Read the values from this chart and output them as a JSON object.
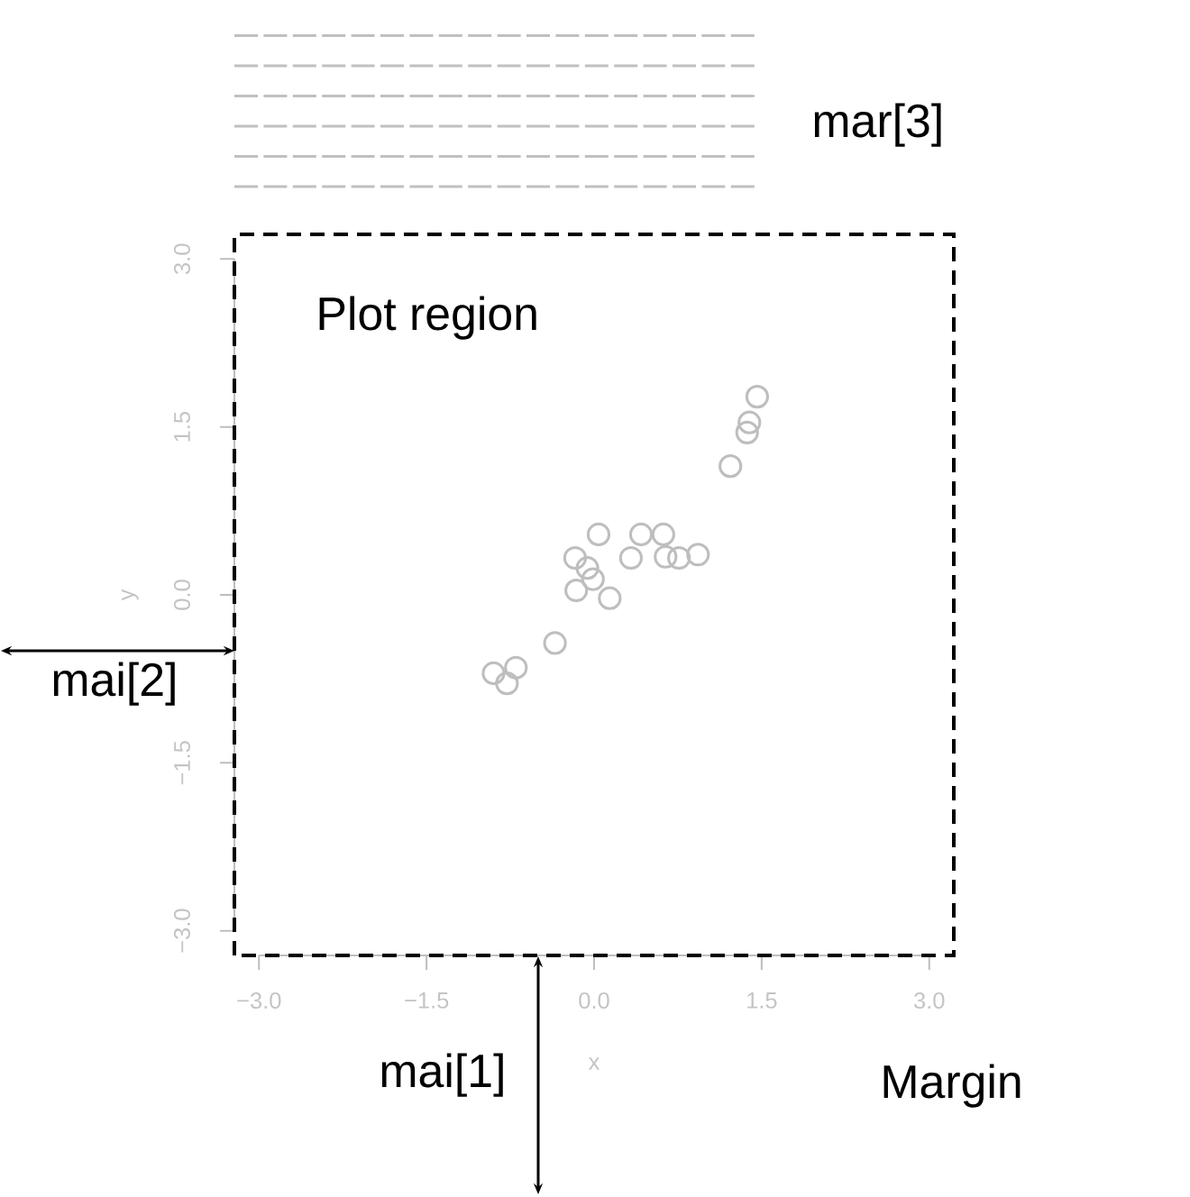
{
  "chart_data": {
    "type": "scatter",
    "xlabel": "x",
    "ylabel": "y",
    "x": [
      1.46,
      1.39,
      1.37,
      1.22,
      0.04,
      0.42,
      0.62,
      0.33,
      0.64,
      0.76,
      0.93,
      -0.17,
      -0.06,
      -0.01,
      -0.16,
      0.14,
      -0.35,
      -0.7,
      -0.9,
      -0.78
    ],
    "values": [
      1.77,
      1.54,
      1.45,
      1.15,
      0.54,
      0.54,
      0.54,
      0.33,
      0.34,
      0.33,
      0.36,
      0.33,
      0.24,
      0.14,
      0.04,
      -0.03,
      -0.43,
      -0.65,
      -0.7,
      -0.79
    ],
    "color": "#bebebe",
    "marker": "circle",
    "xlim": [
      -3.22,
      3.22
    ],
    "ylim": [
      -3.22,
      3.22
    ],
    "xticks": [
      {
        "value": -3,
        "label": "−3.0"
      },
      {
        "value": -1.5,
        "label": "−1.5"
      },
      {
        "value": 0,
        "label": "0.0"
      },
      1.5,
      {
        "value": 3,
        "label": "3.0"
      }
    ],
    "yticks": [
      {
        "value": -3,
        "label": "−3.0"
      },
      {
        "value": -1.5,
        "label": "−1.5"
      },
      {
        "value": 0,
        "label": "0.0"
      },
      1.5,
      {
        "value": 3,
        "label": "3.0"
      }
    ],
    "annotations": [
      "Plot region",
      "mar[3]",
      "mai[2]",
      "mai[1]",
      "Margin"
    ]
  }
}
